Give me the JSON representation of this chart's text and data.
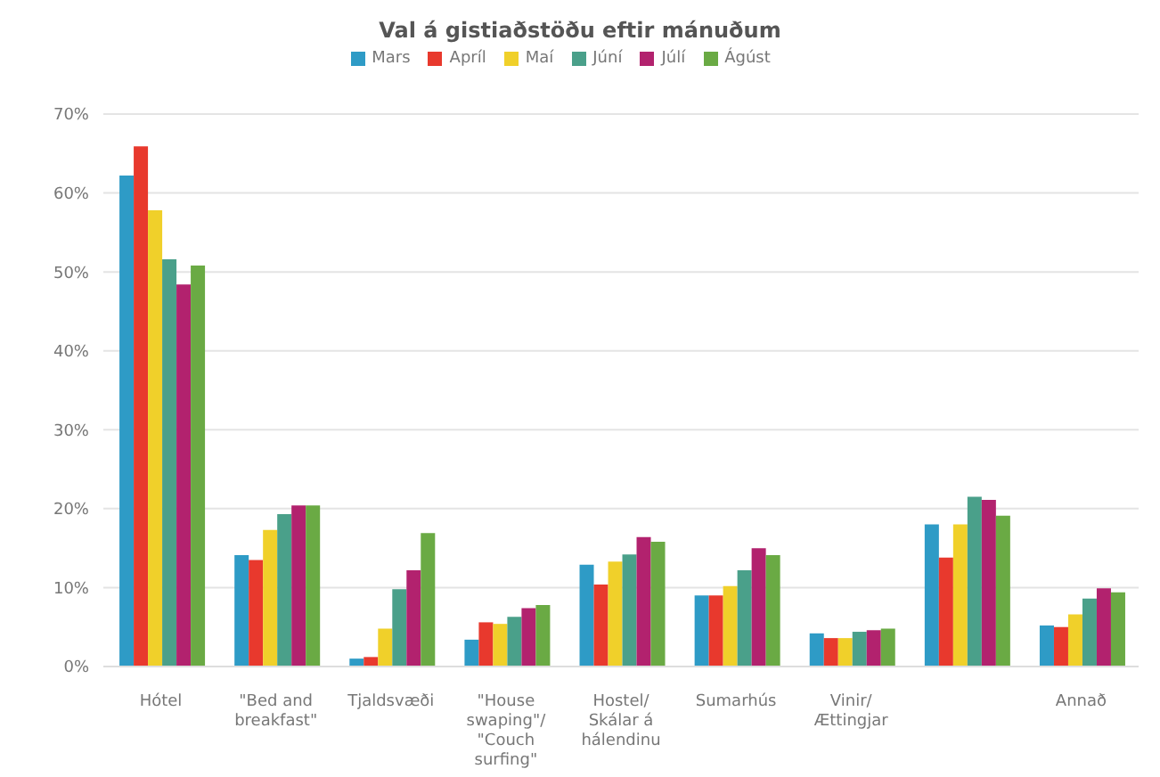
{
  "chart_data": {
    "type": "bar",
    "title": "Val á gistiaðstöðu eftir mánuðum",
    "categories": [
      "Hótel",
      "\"Bed and breakfast\"",
      "Tjaldsvæði",
      "\"House swaping\"/ \"Couch surfing\"",
      "Hostel/ Skálar á hálendinu",
      "Sumarhús",
      "Vinir/ Ættingjar",
      null,
      "Annað"
    ],
    "series": [
      {
        "name": "Mars",
        "color": "#2e9bc6",
        "values": [
          62.2,
          14.1,
          1.0,
          3.4,
          12.9,
          9.0,
          4.2,
          18.0,
          5.2
        ]
      },
      {
        "name": "Apríl",
        "color": "#e8392d",
        "values": [
          65.9,
          13.5,
          1.2,
          5.6,
          10.4,
          9.0,
          3.6,
          13.8,
          5.0
        ]
      },
      {
        "name": "Maí",
        "color": "#f0d02a",
        "values": [
          57.8,
          17.3,
          4.8,
          5.4,
          13.3,
          10.2,
          3.6,
          18.0,
          6.6
        ]
      },
      {
        "name": "Júní",
        "color": "#4aa08a",
        "values": [
          51.6,
          19.3,
          9.8,
          6.3,
          14.2,
          12.2,
          4.4,
          21.5,
          8.6
        ]
      },
      {
        "name": "Júlí",
        "color": "#b2226e",
        "values": [
          48.4,
          20.4,
          12.2,
          7.4,
          16.4,
          15.0,
          4.6,
          21.1,
          9.9
        ]
      },
      {
        "name": "Ágúst",
        "color": "#6aaa44",
        "values": [
          50.8,
          20.4,
          16.9,
          7.8,
          15.8,
          14.1,
          4.8,
          19.1,
          9.4
        ]
      }
    ],
    "ylim": [
      0,
      70
    ],
    "yticks": [
      {
        "value": 0,
        "label": "0%"
      },
      {
        "value": 10,
        "label": "10%"
      },
      {
        "value": 20,
        "label": "20%"
      },
      {
        "value": 30,
        "label": "30%"
      },
      {
        "value": 40,
        "label": "40%"
      },
      {
        "value": 50,
        "label": "50%"
      },
      {
        "value": 60,
        "label": "60%"
      },
      {
        "value": 70,
        "label": "70%"
      }
    ],
    "grid": "y",
    "legend": "top"
  }
}
